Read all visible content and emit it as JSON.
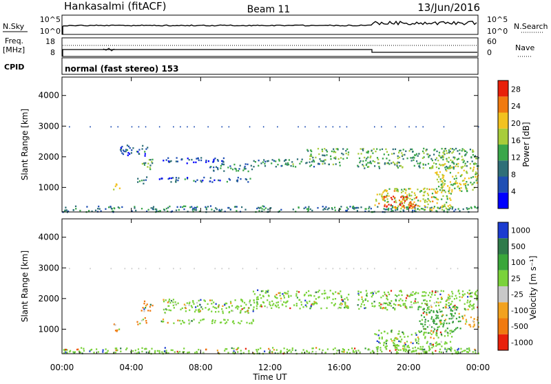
{
  "header": {
    "station": "Hankasalmi (fitACF)",
    "beam": "Beam 11",
    "date": "13/Jun/2016"
  },
  "strips": {
    "nsky_label": "N.Sky",
    "nsky_tick_high": "10^5",
    "nsky_tick_low": "10^0",
    "nsearch_label": "N.Search",
    "nsearch_tick_high": "10^5",
    "nsearch_tick_low": "10^0",
    "freq_label": "Freq.",
    "freq_unit": "[MHz]",
    "freq_tick_high": "18",
    "freq_tick_low": "8",
    "nave_label": "Nave",
    "nave_tick_high": "60",
    "nave_tick_low": "0",
    "cpid_label": "CPID",
    "cpid_text": "normal (fast stereo) 153"
  },
  "chart_data": [
    {
      "type": "heatmap",
      "panel": "power",
      "xlabel": "Time UT",
      "ylabel": "Slant Range [km]",
      "xticks": [
        "00:00",
        "04:00",
        "08:00",
        "12:00",
        "16:00",
        "20:00",
        "00:00"
      ],
      "x_hours": [
        0,
        4,
        8,
        12,
        16,
        20,
        24
      ],
      "xlim": [
        0,
        24
      ],
      "yticks": [
        1000,
        2000,
        3000,
        4000
      ],
      "ylim": [
        200,
        4600
      ],
      "colorbar": {
        "label": "Power [dB]",
        "range": [
          0,
          30
        ],
        "ticks": [
          4,
          8,
          12,
          16,
          20,
          24,
          28
        ],
        "colors": [
          "#0000ff",
          "#1f4fb4",
          "#2f6f78",
          "#3aa64a",
          "#a8cc3a",
          "#f2c21f",
          "#f07a10",
          "#e8200a"
        ]
      },
      "echo_regions": [
        {
          "t": [
            0,
            24
          ],
          "r": [
            220,
            420
          ],
          "value": 10
        },
        {
          "t": [
            3.3,
            5.0
          ],
          "r": [
            2050,
            2400
          ],
          "value": 7
        },
        {
          "t": [
            4.5,
            5.2
          ],
          "r": [
            1600,
            1950
          ],
          "value": 14
        },
        {
          "t": [
            2.9,
            3.3
          ],
          "r": [
            950,
            1200
          ],
          "value": 20
        },
        {
          "t": [
            4.3,
            4.9
          ],
          "r": [
            1150,
            1400
          ],
          "value": 9
        },
        {
          "t": [
            5.8,
            9.5
          ],
          "r": [
            1800,
            2000
          ],
          "value": 6
        },
        {
          "t": [
            8.5,
            11.0
          ],
          "r": [
            1550,
            1800
          ],
          "value": 10
        },
        {
          "t": [
            5.5,
            11.0
          ],
          "r": [
            1200,
            1350
          ],
          "value": 7
        },
        {
          "t": [
            11.0,
            16.0
          ],
          "r": [
            1700,
            1950
          ],
          "value": 11
        },
        {
          "t": [
            14.0,
            16.5
          ],
          "r": [
            1950,
            2300
          ],
          "value": 14
        },
        {
          "t": [
            17.0,
            24.0
          ],
          "r": [
            1650,
            2300
          ],
          "value": 13
        },
        {
          "t": [
            18.0,
            22.5
          ],
          "r": [
            280,
            1000
          ],
          "value": 18
        },
        {
          "t": [
            18.5,
            20.5
          ],
          "r": [
            350,
            750
          ],
          "value": 27
        },
        {
          "t": [
            21.5,
            24.0
          ],
          "r": [
            900,
            1800
          ],
          "value": 17
        }
      ]
    },
    {
      "type": "heatmap",
      "panel": "velocity",
      "xlabel": "Time UT",
      "ylabel": "Slant Range [km]",
      "xticks": [
        "00:00",
        "04:00",
        "08:00",
        "12:00",
        "16:00",
        "20:00",
        "00:00"
      ],
      "x_hours": [
        0,
        4,
        8,
        12,
        16,
        20,
        24
      ],
      "xlim": [
        0,
        24
      ],
      "yticks": [
        1000,
        2000,
        3000,
        4000
      ],
      "ylim": [
        200,
        4600
      ],
      "colorbar": {
        "label": "Velocity [m s⁻¹]",
        "ticks": [
          "1000",
          "500",
          "100",
          "25",
          "-25",
          "-100",
          "-500",
          "-1000"
        ],
        "colors": [
          "#1c3cd0",
          "#2f7a4a",
          "#3aa63a",
          "#7ad23a",
          "#c8c8c8",
          "#f2a21f",
          "#f07a10",
          "#e8200a"
        ]
      },
      "echo_regions": [
        {
          "t": [
            0,
            24
          ],
          "r": [
            220,
            420
          ],
          "value": "25"
        },
        {
          "t": [
            2.9,
            3.3
          ],
          "r": [
            950,
            1200
          ],
          "value": "-500"
        },
        {
          "t": [
            4.5,
            5.2
          ],
          "r": [
            1600,
            1950
          ],
          "value": "-500"
        },
        {
          "t": [
            4.3,
            4.9
          ],
          "r": [
            1150,
            1400
          ],
          "value": "-500"
        },
        {
          "t": [
            5.8,
            11.0
          ],
          "r": [
            1550,
            2000
          ],
          "value": "25"
        },
        {
          "t": [
            5.5,
            11.0
          ],
          "r": [
            1200,
            1350
          ],
          "value": "25"
        },
        {
          "t": [
            11.0,
            16.5
          ],
          "r": [
            1700,
            2300
          ],
          "value": "25"
        },
        {
          "t": [
            17.0,
            24.0
          ],
          "r": [
            1650,
            2300
          ],
          "value": "25"
        },
        {
          "t": [
            18.0,
            22.5
          ],
          "r": [
            280,
            1000
          ],
          "value": "25"
        },
        {
          "t": [
            20.5,
            23.0
          ],
          "r": [
            900,
            1800
          ],
          "value": "100"
        },
        {
          "t": [
            23.0,
            24.0
          ],
          "r": [
            1100,
            1500
          ],
          "value": "-100"
        }
      ]
    }
  ]
}
